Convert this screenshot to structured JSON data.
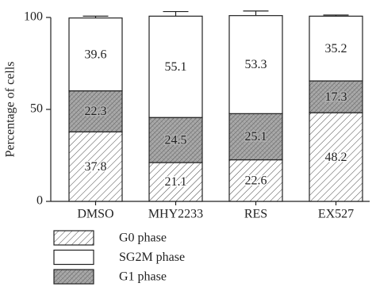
{
  "chart_data": {
    "type": "stacked-bar",
    "y_label": "Percentage of cells",
    "categories": [
      "DMSO",
      "MHY2233",
      "RES",
      "EX527"
    ],
    "series": [
      {
        "name": "G0 phase",
        "color": "#ffffff",
        "pattern": "hatch",
        "values": [
          37.8,
          21.1,
          22.6,
          48.2
        ],
        "errors": [
          0.6,
          0.6,
          0.4,
          0.6
        ]
      },
      {
        "name": "G1 phase",
        "color": "#a0a0a0",
        "pattern": "crosshatch",
        "values": [
          22.3,
          24.5,
          25.1,
          17.3
        ],
        "errors": [
          1.5,
          2.0,
          0.5,
          2.0
        ]
      },
      {
        "name": "SG2M phase",
        "color": "#ffffff",
        "pattern": "none",
        "values": [
          39.6,
          55.1,
          53.3,
          35.2
        ],
        "errors": [
          1.0,
          2.5,
          2.5,
          0.6
        ]
      }
    ],
    "ylim": [
      0,
      100
    ],
    "yticks": [
      0,
      50,
      100
    ]
  }
}
